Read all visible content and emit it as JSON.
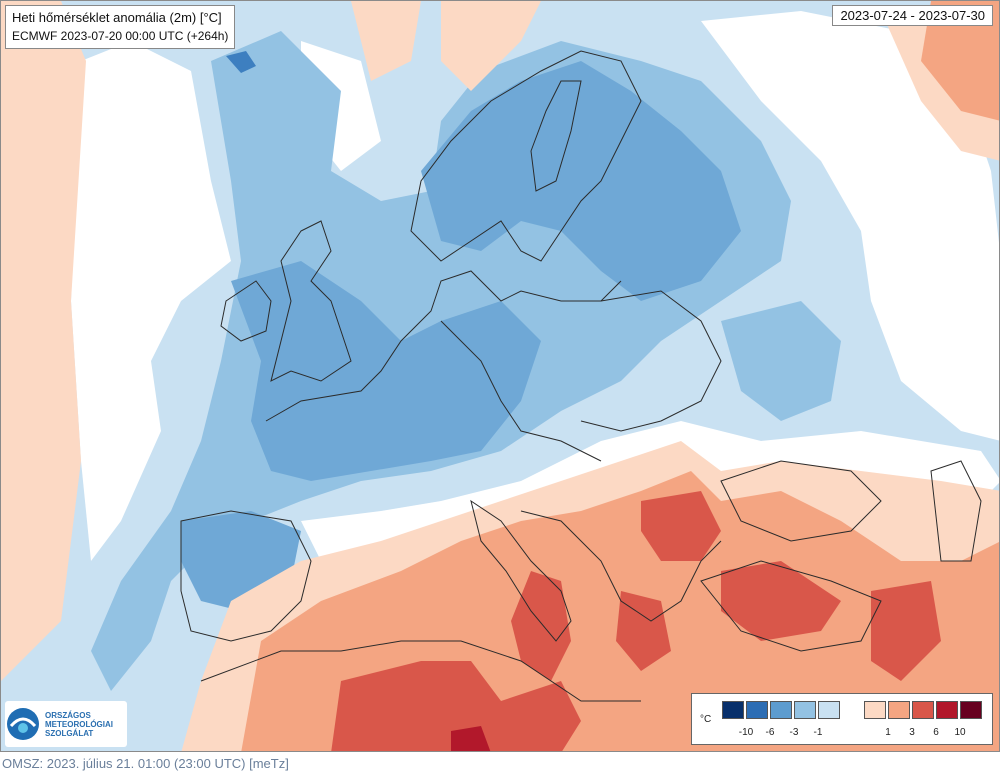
{
  "header": {
    "title": "Heti hőmérséklet anomália (2m) [°C]",
    "subtitle": "ECMWF 2023-07-20 00:00 UTC (+264h)",
    "date_range": "2023-07-24 - 2023-07-30"
  },
  "logo": {
    "line1": "ORSZÁGOS",
    "line2": "METEOROLÓGIAI",
    "line3": "SZOLGÁLAT"
  },
  "legend": {
    "unit": "°C",
    "cold_colors": [
      "#08306b",
      "#2c6db4",
      "#5d9ccf",
      "#93c2e3",
      "#c9e1f2"
    ],
    "warm_colors": [
      "#fcd9c4",
      "#f4a582",
      "#d9574a",
      "#b2182b",
      "#67001f"
    ],
    "cold_labels": [
      "-10",
      "-6",
      "-3",
      "-1"
    ],
    "warm_labels": [
      "1",
      "3",
      "6",
      "10"
    ]
  },
  "colors": {
    "sea_neutral": "#ffffff",
    "light_blue": "#c9e1f2",
    "mid_blue": "#93c2e3",
    "blue": "#6fa8d6",
    "dark_blue": "#3d7fc0",
    "light_orange": "#fcd9c4",
    "orange": "#f4a582",
    "red": "#d9574a",
    "dark_red": "#b2182b",
    "border": "#2b2b2b"
  },
  "footer": {
    "text": "OMSZ: 2023. július 21. 01:00 (23:00  UTC)  [meTz]"
  }
}
